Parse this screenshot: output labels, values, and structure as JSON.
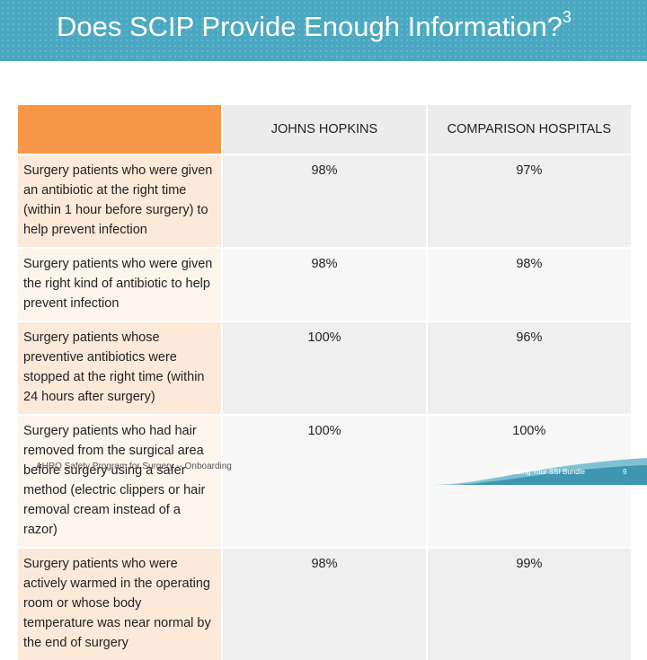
{
  "slide": {
    "title": "Does SCIP Provide Enough Information?",
    "title_superscript": "3",
    "accent_color": "#4aa8c2",
    "header_row_color": "#f79646"
  },
  "table": {
    "columns": [
      "JOHNS HOPKINS",
      "COMPARISON HOSPITALS"
    ],
    "rows": [
      {
        "measure": "Surgery patients who were given an antibiotic at the right time (within 1 hour before surgery) to help prevent infection",
        "johns_hopkins": "98%",
        "comparison": "97%"
      },
      {
        "measure": "Surgery patients who were given the right kind of antibiotic to help prevent infection",
        "johns_hopkins": "98%",
        "comparison": "98%"
      },
      {
        "measure": "Surgery patients whose preventive antibiotics were stopped at the right time (within 24 hours after surgery)",
        "johns_hopkins": "100%",
        "comparison": "96%"
      },
      {
        "measure": "Surgery patients who had hair removed from the surgical area before surgery using a safer method (electric clippers or hair removal cream instead of a razor)",
        "johns_hopkins": "100%",
        "comparison": "100%"
      },
      {
        "measure": "Surgery patients who were actively warmed in the operating room or whose body temperature was near normal by the end of surgery",
        "johns_hopkins": "98%",
        "comparison": "99%"
      }
    ]
  },
  "footer": {
    "left_text": "AHRQ Safety Program for Surgery -- Onboarding",
    "right_text": "Building Your SSI Bundle",
    "page_number": "9"
  }
}
